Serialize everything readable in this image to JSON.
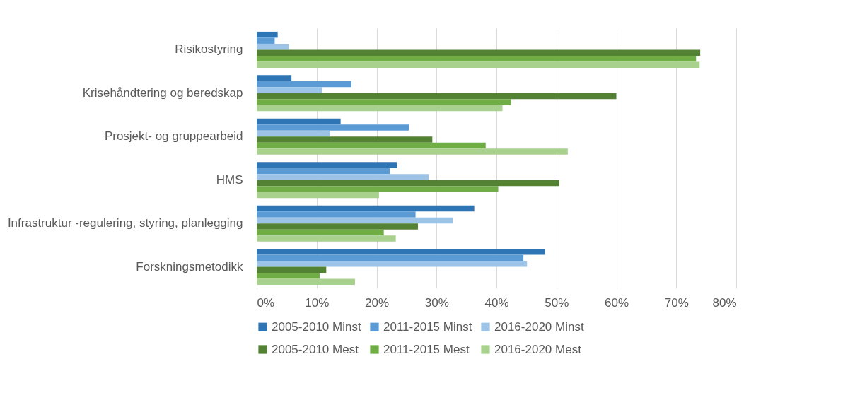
{
  "chart_data": {
    "type": "bar",
    "orientation": "horizontal",
    "categories": [
      "Risikostyring",
      "Krisehåndtering og beredskap",
      "Prosjekt- og gruppearbeid",
      "HMS",
      "Infrastruktur -regulering, styring, planlegging",
      "Forskningsmetodikk"
    ],
    "series": [
      {
        "name": "2005-2010 Minst",
        "color": "#2e75b6",
        "values": [
          3.5,
          5.8,
          14.0,
          23.4,
          36.3,
          48.1
        ]
      },
      {
        "name": "2011-2015 Minst",
        "color": "#5b9bd5",
        "values": [
          3.0,
          15.8,
          25.4,
          22.2,
          26.5,
          44.5
        ]
      },
      {
        "name": "2016-2020 Minst",
        "color": "#9dc3e6",
        "values": [
          5.4,
          10.9,
          12.2,
          28.7,
          32.7,
          45.1
        ]
      },
      {
        "name": "2005-2010 Mest",
        "color": "#548235",
        "values": [
          74.0,
          60.0,
          29.3,
          50.5,
          26.9,
          11.6
        ]
      },
      {
        "name": "2011-2015 Mest",
        "color": "#70ad47",
        "values": [
          73.3,
          42.4,
          38.2,
          40.3,
          21.2,
          10.5
        ]
      },
      {
        "name": "2016-2020 Mest",
        "color": "#a9d18e",
        "values": [
          73.9,
          41.0,
          51.9,
          20.4,
          23.2,
          16.4
        ]
      }
    ],
    "xlim": [
      0,
      80
    ],
    "xticks": [
      {
        "value": 0,
        "label": "0%"
      },
      {
        "value": 10,
        "label": "10%"
      },
      {
        "value": 20,
        "label": "20%"
      },
      {
        "value": 30,
        "label": "30%"
      },
      {
        "value": 40,
        "label": "40%"
      },
      {
        "value": 50,
        "label": "50%"
      },
      {
        "value": 60,
        "label": "60%"
      },
      {
        "value": 70,
        "label": "70%"
      },
      {
        "value": 80,
        "label": "80%"
      }
    ],
    "grid": "x",
    "legend": "bottom"
  }
}
